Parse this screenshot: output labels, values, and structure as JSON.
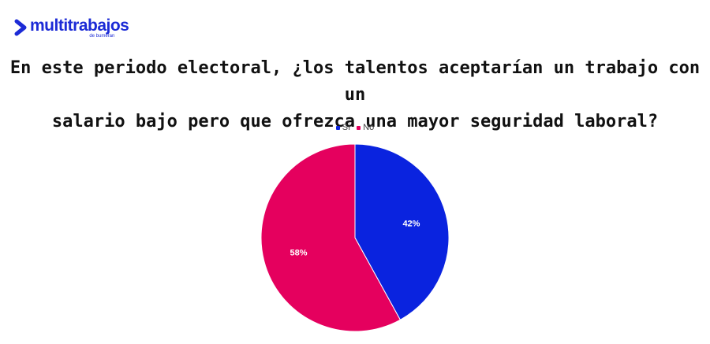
{
  "brand": {
    "name": "multitrabajos",
    "sub": "de bumeran",
    "color": "#1c2bd6"
  },
  "chart_data": {
    "type": "pie",
    "title": "En este periodo electoral, ¿los talentos aceptarían un trabajo con un salario bajo pero que ofrezca una mayor seguridad laboral?",
    "legend_position": "top",
    "slices": [
      {
        "label": "Sí",
        "value": 42,
        "display": "42%",
        "color": "#0a23df"
      },
      {
        "label": "No",
        "value": 58,
        "display": "58%",
        "color": "#e5005e"
      }
    ]
  }
}
